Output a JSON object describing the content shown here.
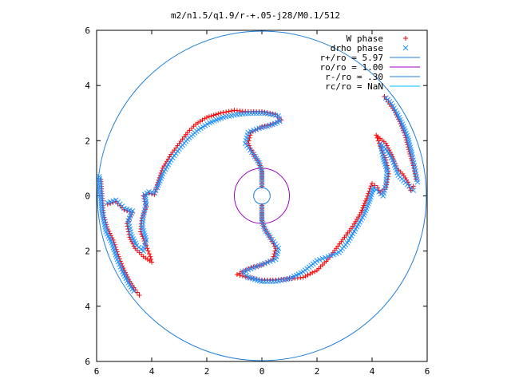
{
  "chart_data": {
    "type": "scatter",
    "title": "m2/n1.5/q1.9/r-+.05-j28/M0.1/512",
    "xlim": [
      -6,
      6
    ],
    "ylim": [
      -6,
      6
    ],
    "xticks": [
      "6",
      "4",
      "2",
      "0",
      "2",
      "4",
      "6"
    ],
    "yticks": [
      "6",
      "4",
      "2",
      "0",
      "2",
      "4",
      "6"
    ],
    "grid": false,
    "legend_position": "top-right",
    "legend": [
      {
        "label": "W phase",
        "marker": "+",
        "color": "#ff0000"
      },
      {
        "label": "drho phase",
        "marker": "x",
        "color": "#1e90ff"
      },
      {
        "label": "r+/ro = 5.97",
        "marker": "line",
        "color": "#1e7fd8"
      },
      {
        "label": "ro/ro = 1.00",
        "marker": "line",
        "color": "#a000c0"
      },
      {
        "label": "r-/ro = .30",
        "marker": "line",
        "color": "#1e7fd8"
      },
      {
        "label": "rc/ro = NaN",
        "marker": "line",
        "color": "#00bfff"
      }
    ],
    "circles": [
      {
        "name": "r+",
        "radius": 5.97,
        "color": "#1e7fd8"
      },
      {
        "name": "ro",
        "radius": 1.0,
        "color": "#a000c0"
      },
      {
        "name": "r-",
        "radius": 0.3,
        "color": "#1e7fd8"
      }
    ],
    "series": [
      {
        "name": "W phase",
        "color": "#ff0000",
        "marker": "+",
        "segments": [
          [
            [
              0,
              0.35
            ],
            [
              0,
              0.6
            ],
            [
              0,
              0.9
            ],
            [
              -0.1,
              1.2
            ],
            [
              -0.3,
              1.5
            ],
            [
              -0.5,
              1.9
            ],
            [
              -0.4,
              2.3
            ],
            [
              0.0,
              2.5
            ],
            [
              0.4,
              2.6
            ],
            [
              0.7,
              2.75
            ],
            [
              0.5,
              2.95
            ],
            [
              0.0,
              3.05
            ],
            [
              -0.5,
              3.05
            ],
            [
              -1.0,
              3.1
            ],
            [
              -1.5,
              3.0
            ],
            [
              -2.0,
              2.85
            ],
            [
              -2.4,
              2.6
            ],
            [
              -2.7,
              2.3
            ],
            [
              -3.0,
              1.9
            ],
            [
              -3.3,
              1.5
            ],
            [
              -3.6,
              1.0
            ],
            [
              -3.8,
              0.4
            ],
            [
              -3.9,
              0.05
            ],
            [
              -4.1,
              0.1
            ],
            [
              -4.3,
              0.0
            ],
            [
              -4.2,
              -0.4
            ],
            [
              -4.35,
              -0.8
            ],
            [
              -4.4,
              -1.3
            ],
            [
              -4.2,
              -1.8
            ],
            [
              -4.05,
              -2.2
            ],
            [
              -4.0,
              -2.4
            ],
            [
              -4.3,
              -2.2
            ],
            [
              -4.6,
              -1.9
            ],
            [
              -4.8,
              -1.5
            ],
            [
              -4.9,
              -1.0
            ],
            [
              -4.7,
              -0.6
            ],
            [
              -5.0,
              -0.5
            ],
            [
              -5.3,
              -0.2
            ],
            [
              -5.6,
              -0.3
            ]
          ],
          [
            [
              0,
              -0.35
            ],
            [
              0,
              -0.6
            ],
            [
              0,
              -0.9
            ],
            [
              0.1,
              -1.2
            ],
            [
              0.3,
              -1.5
            ],
            [
              0.5,
              -1.9
            ],
            [
              0.4,
              -2.3
            ],
            [
              0.0,
              -2.5
            ],
            [
              -0.4,
              -2.6
            ],
            [
              -0.7,
              -2.75
            ],
            [
              -0.9,
              -2.85
            ],
            [
              -0.5,
              -2.95
            ],
            [
              0.0,
              -3.05
            ],
            [
              0.5,
              -3.05
            ],
            [
              1.0,
              -3.0
            ],
            [
              1.5,
              -2.95
            ],
            [
              2.0,
              -2.7
            ],
            [
              2.4,
              -2.3
            ],
            [
              2.7,
              -1.9
            ],
            [
              3.0,
              -1.5
            ],
            [
              3.3,
              -1.1
            ],
            [
              3.6,
              -0.6
            ],
            [
              3.8,
              -0.1
            ],
            [
              4.0,
              0.45
            ],
            [
              4.2,
              0.3
            ],
            [
              4.3,
              0.1
            ],
            [
              4.5,
              0.3
            ],
            [
              4.6,
              0.8
            ],
            [
              4.5,
              1.3
            ],
            [
              4.3,
              1.8
            ],
            [
              4.15,
              2.2
            ],
            [
              4.5,
              1.9
            ],
            [
              4.7,
              1.5
            ],
            [
              4.9,
              1.0
            ],
            [
              5.1,
              0.8
            ],
            [
              5.3,
              0.5
            ],
            [
              5.4,
              0.2
            ],
            [
              5.5,
              0.35
            ]
          ],
          [
            [
              -5.85,
              0.6
            ],
            [
              -5.75,
              -0.7
            ],
            [
              -5.6,
              -1.2
            ],
            [
              -5.4,
              -1.6
            ],
            [
              -5.2,
              -2.2
            ],
            [
              -5.0,
              -2.7
            ],
            [
              -4.8,
              -3.1
            ],
            [
              -4.6,
              -3.4
            ],
            [
              -4.45,
              -3.6
            ]
          ],
          [
            [
              4.45,
              3.6
            ],
            [
              4.6,
              3.4
            ],
            [
              4.8,
              3.1
            ],
            [
              5.0,
              2.7
            ],
            [
              5.2,
              2.2
            ],
            [
              5.35,
              1.6
            ],
            [
              5.5,
              1.1
            ],
            [
              5.6,
              0.6
            ]
          ]
        ]
      },
      {
        "name": "drho phase",
        "color": "#1e90ff",
        "marker": "x",
        "segments": [
          [
            [
              0,
              0.35
            ],
            [
              0,
              0.6
            ],
            [
              0,
              0.9
            ],
            [
              -0.1,
              1.2
            ],
            [
              -0.3,
              1.5
            ],
            [
              -0.6,
              1.9
            ],
            [
              -0.5,
              2.3
            ],
            [
              -0.1,
              2.45
            ],
            [
              0.3,
              2.55
            ],
            [
              0.65,
              2.7
            ],
            [
              0.6,
              2.9
            ],
            [
              0.1,
              3.0
            ],
            [
              -0.4,
              3.0
            ],
            [
              -0.9,
              2.95
            ],
            [
              -1.4,
              2.85
            ],
            [
              -1.9,
              2.65
            ],
            [
              -2.3,
              2.4
            ],
            [
              -2.7,
              2.05
            ],
            [
              -3.0,
              1.7
            ],
            [
              -3.3,
              1.3
            ],
            [
              -3.6,
              0.8
            ],
            [
              -3.8,
              0.3
            ],
            [
              -3.9,
              0.1
            ],
            [
              -4.1,
              0.15
            ],
            [
              -4.25,
              0.05
            ],
            [
              -4.2,
              -0.3
            ],
            [
              -4.3,
              -0.7
            ],
            [
              -4.35,
              -1.1
            ],
            [
              -4.2,
              -1.6
            ],
            [
              -4.3,
              -2.0
            ],
            [
              -4.55,
              -1.8
            ],
            [
              -4.75,
              -1.4
            ],
            [
              -4.85,
              -0.9
            ],
            [
              -4.7,
              -0.55
            ],
            [
              -5.0,
              -0.45
            ],
            [
              -5.3,
              -0.15
            ],
            [
              -5.6,
              -0.25
            ]
          ],
          [
            [
              0,
              -0.35
            ],
            [
              0,
              -0.6
            ],
            [
              0,
              -0.9
            ],
            [
              0.1,
              -1.2
            ],
            [
              0.3,
              -1.5
            ],
            [
              0.6,
              -1.9
            ],
            [
              0.5,
              -2.3
            ],
            [
              0.1,
              -2.45
            ],
            [
              -0.3,
              -2.6
            ],
            [
              -0.7,
              -2.75
            ],
            [
              -0.5,
              -2.95
            ],
            [
              0.0,
              -3.1
            ],
            [
              0.5,
              -3.1
            ],
            [
              1.0,
              -3.0
            ],
            [
              1.5,
              -2.75
            ],
            [
              2.0,
              -2.35
            ],
            [
              2.4,
              -2.2
            ],
            [
              2.8,
              -2.05
            ],
            [
              3.1,
              -1.7
            ],
            [
              3.4,
              -1.2
            ],
            [
              3.7,
              -0.7
            ],
            [
              3.9,
              -0.2
            ],
            [
              4.05,
              0.3
            ],
            [
              4.25,
              0.15
            ],
            [
              4.4,
              0.0
            ],
            [
              4.5,
              0.4
            ],
            [
              4.55,
              0.9
            ],
            [
              4.4,
              1.4
            ],
            [
              4.3,
              1.9
            ],
            [
              4.5,
              1.7
            ],
            [
              4.75,
              1.3
            ],
            [
              4.95,
              0.75
            ],
            [
              5.15,
              0.55
            ],
            [
              5.35,
              0.35
            ],
            [
              5.5,
              0.2
            ]
          ],
          [
            [
              -5.9,
              0.7
            ],
            [
              -5.8,
              -0.6
            ],
            [
              -5.65,
              -1.3
            ],
            [
              -5.45,
              -1.7
            ],
            [
              -5.25,
              -2.3
            ],
            [
              -5.05,
              -2.75
            ],
            [
              -4.85,
              -3.15
            ],
            [
              -4.65,
              -3.45
            ]
          ],
          [
            [
              4.5,
              3.55
            ],
            [
              4.7,
              3.35
            ],
            [
              4.9,
              3.0
            ],
            [
              5.1,
              2.6
            ],
            [
              5.3,
              2.1
            ],
            [
              5.45,
              1.5
            ],
            [
              5.55,
              1.0
            ],
            [
              5.65,
              0.5
            ]
          ]
        ]
      }
    ]
  }
}
